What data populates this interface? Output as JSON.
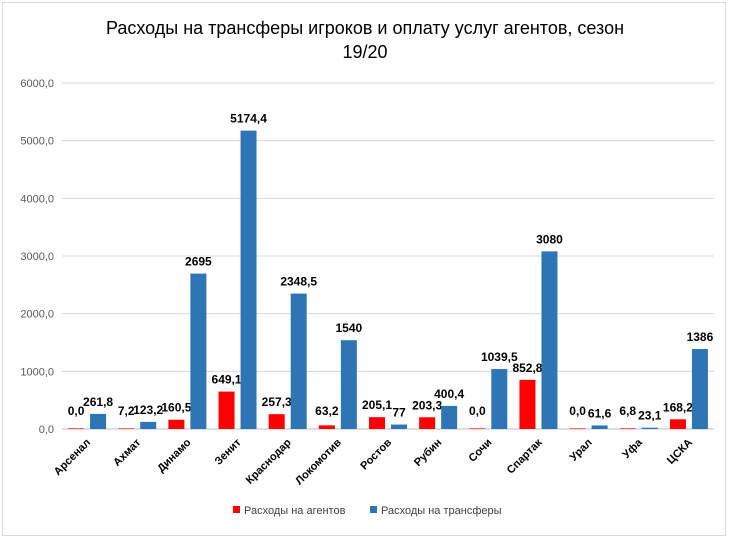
{
  "chart_data": {
    "type": "bar",
    "title_line1": "Расходы на трансферы игроков  и оплату услуг агентов, сезон",
    "title_line2": "19/20",
    "categories": [
      "Арсенал",
      "Ахмат",
      "Динамо",
      "Зенит",
      "Краснодар",
      "Локомотив",
      "Ростов",
      "Рубин",
      "Сочи",
      "Спартак",
      "Урал",
      "Уфа",
      "ЦСКА"
    ],
    "series": [
      {
        "name": "Расходы на агентов",
        "color": "#ff0000",
        "values": [
          0.0,
          7.2,
          160.5,
          649.1,
          257.3,
          63.2,
          205.1,
          203.3,
          0.0,
          852.8,
          0.0,
          6.8,
          168.2
        ],
        "labels": [
          "0,0",
          "7,2",
          "160,5",
          "649,1",
          "257,3",
          "63,2",
          "205,1",
          "203,3",
          "0,0",
          "852,8",
          "0,0",
          "6,8",
          "168,2"
        ]
      },
      {
        "name": "Расходы на трансферы",
        "color": "#2e75b6",
        "values": [
          261.8,
          123.2,
          2695,
          5174.4,
          2348.5,
          1540,
          77,
          400.4,
          1039.5,
          3080,
          61.6,
          23.1,
          1386
        ],
        "labels": [
          "261,8",
          "123,2",
          "2695",
          "5174,4",
          "2348,5",
          "1540",
          "77",
          "400,4",
          "1039,5",
          "3080",
          "61,6",
          "23,1",
          "1386"
        ]
      }
    ],
    "ylim": [
      0,
      6000
    ],
    "yticks": [
      "0,0",
      "1000,0",
      "2000,0",
      "3000,0",
      "4000,0",
      "5000,0",
      "6000,0"
    ],
    "grid": true,
    "legend_position": "bottom"
  }
}
